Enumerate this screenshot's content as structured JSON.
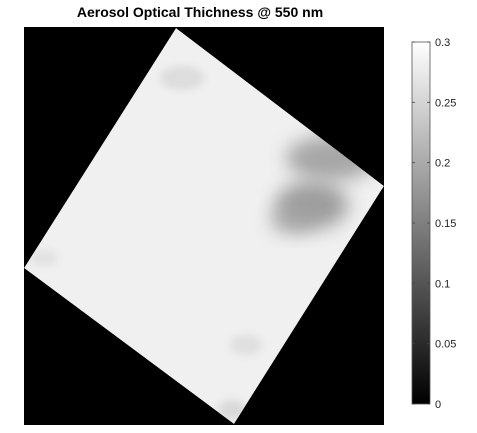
{
  "chart_data": {
    "type": "heatmap",
    "title": "Aerosol Optical Thichness @ 550 nm",
    "colormap": "gray",
    "background_color": "#000000",
    "clim": [
      0,
      0.3
    ],
    "colorbar": {
      "location": "right",
      "ticks": [
        0,
        0.05,
        0.1,
        0.15,
        0.2,
        0.25,
        0.3
      ],
      "tick_labels": [
        "0",
        "0.05",
        "0.1",
        "0.15",
        "0.2",
        "0.25",
        "0.3"
      ]
    },
    "swath_value": 0.29,
    "regions": [
      {
        "name": "darker aerosol patch (upper right)",
        "min_value": 0.14
      },
      {
        "name": "darker aerosol patch (right center)",
        "min_value": 0.16
      }
    ]
  }
}
